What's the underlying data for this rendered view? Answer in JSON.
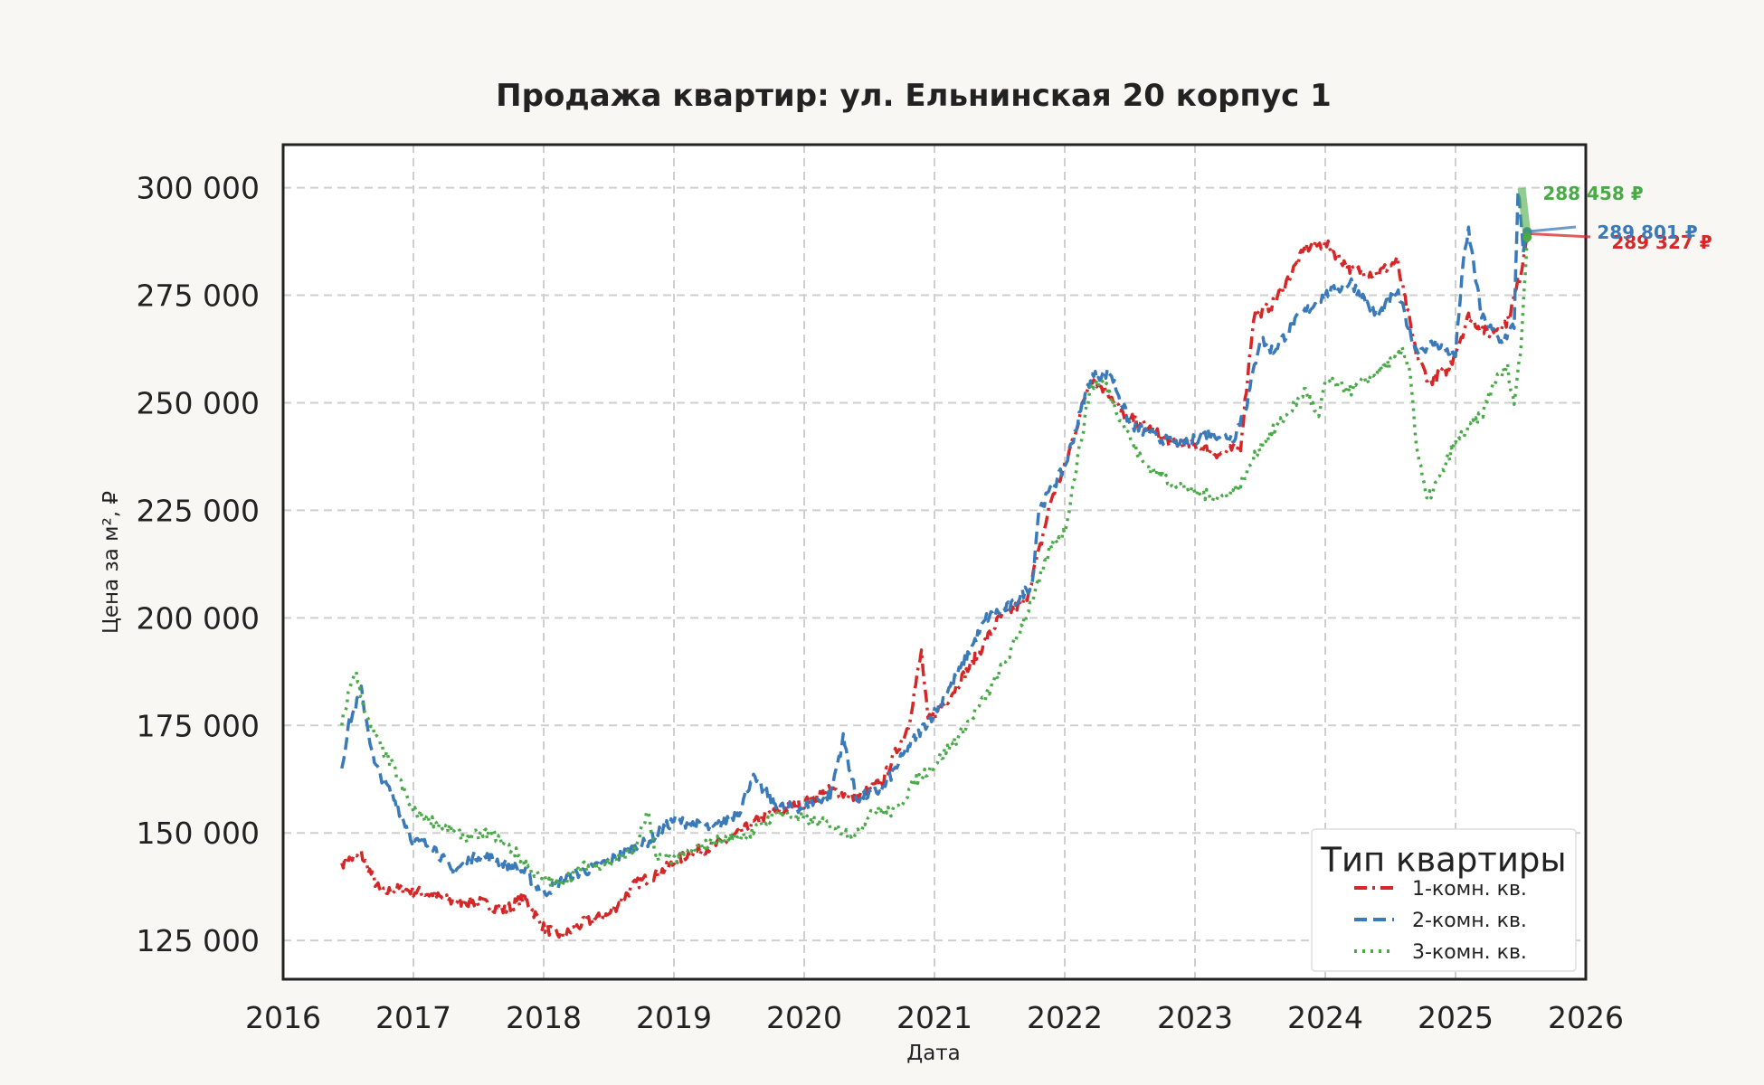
{
  "chart_data": {
    "type": "line",
    "title": "Продажа квартир: ул. Ельнинская 20 корпус 1",
    "xlabel": "Дата",
    "ylabel": "Цена за м², ₽",
    "xlim": [
      2016.0,
      2026.0
    ],
    "ylim": [
      116000,
      310000
    ],
    "x_ticks": [
      "2016",
      "2017",
      "2018",
      "2019",
      "2020",
      "2021",
      "2022",
      "2023",
      "2024",
      "2025",
      "2026"
    ],
    "y_ticks": [
      {
        "value": 125000,
        "label": "125 000"
      },
      {
        "value": 150000,
        "label": "150 000"
      },
      {
        "value": 175000,
        "label": "175 000"
      },
      {
        "value": 200000,
        "label": "200 000"
      },
      {
        "value": 225000,
        "label": "225 000"
      },
      {
        "value": 250000,
        "label": "250 000"
      },
      {
        "value": 275000,
        "label": "275 000"
      },
      {
        "value": 300000,
        "label": "300 000"
      }
    ],
    "grid": true,
    "legend": {
      "title": "Тип квартиры",
      "position": "lower-right"
    },
    "series": [
      {
        "name": "1-комн. кв.",
        "color": "#d62728",
        "dash": "dash-dot",
        "end_label": "289 327 ₽",
        "x": [
          2016.45,
          2016.6,
          2016.75,
          2016.9,
          2017.1,
          2017.3,
          2017.5,
          2017.7,
          2017.85,
          2018.0,
          2018.15,
          2018.3,
          2018.5,
          2018.7,
          2018.9,
          2019.1,
          2019.4,
          2019.7,
          2020.0,
          2020.2,
          2020.4,
          2020.6,
          2020.8,
          2020.9,
          2020.95,
          2021.1,
          2021.3,
          2021.5,
          2021.7,
          2021.8,
          2021.9,
          2022.0,
          2022.2,
          2022.35,
          2022.45,
          2022.6,
          2022.8,
          2023.0,
          2023.2,
          2023.35,
          2023.45,
          2023.6,
          2023.7,
          2023.85,
          2024.0,
          2024.2,
          2024.4,
          2024.55,
          2024.7,
          2024.8,
          2024.95,
          2025.0,
          2025.1,
          2025.25,
          2025.4,
          2025.5,
          2025.55
        ],
        "y": [
          143000,
          145000,
          136000,
          137000,
          136000,
          134000,
          134000,
          132000,
          135000,
          128000,
          126000,
          129000,
          131000,
          138000,
          141000,
          145000,
          148000,
          154000,
          157000,
          160000,
          158000,
          162000,
          175000,
          192000,
          176000,
          181000,
          190000,
          200000,
          204000,
          215000,
          228000,
          235000,
          256000,
          252000,
          247000,
          245000,
          241000,
          240000,
          238000,
          240000,
          270000,
          273000,
          278000,
          286000,
          287000,
          281000,
          280000,
          283000,
          261000,
          255000,
          258000,
          262000,
          270000,
          266000,
          269000,
          280000,
          289327
        ]
      },
      {
        "name": "2-комн. кв.",
        "color": "#3a7ab8",
        "dash": "dashed",
        "end_label": "289 801 ₽",
        "x": [
          2016.45,
          2016.5,
          2016.6,
          2016.7,
          2016.85,
          2017.0,
          2017.15,
          2017.3,
          2017.5,
          2017.7,
          2017.85,
          2018.0,
          2018.2,
          2018.4,
          2018.6,
          2018.8,
          2019.0,
          2019.3,
          2019.5,
          2019.6,
          2019.8,
          2020.0,
          2020.2,
          2020.3,
          2020.4,
          2020.6,
          2020.8,
          2021.0,
          2021.2,
          2021.4,
          2021.6,
          2021.75,
          2021.8,
          2021.9,
          2022.0,
          2022.2,
          2022.35,
          2022.5,
          2022.7,
          2022.9,
          2023.1,
          2023.3,
          2023.4,
          2023.5,
          2023.6,
          2023.8,
          2024.0,
          2024.2,
          2024.4,
          2024.55,
          2024.7,
          2024.85,
          2025.0,
          2025.05,
          2025.1,
          2025.2,
          2025.35,
          2025.45,
          2025.48,
          2025.52,
          2025.55
        ],
        "y": [
          165000,
          175000,
          183000,
          166000,
          158000,
          148000,
          147000,
          141000,
          145000,
          143000,
          141000,
          136000,
          140000,
          142000,
          145000,
          148000,
          153000,
          151000,
          155000,
          163000,
          156000,
          156000,
          159000,
          172000,
          158000,
          160000,
          170000,
          178000,
          188000,
          200000,
          203000,
          208000,
          225000,
          230000,
          235000,
          256000,
          257000,
          245000,
          242000,
          240000,
          243000,
          242000,
          250000,
          265000,
          262000,
          270000,
          275000,
          278000,
          270000,
          276000,
          262000,
          264000,
          261000,
          280000,
          290000,
          270000,
          264000,
          268000,
          300000,
          285000,
          289801
        ]
      },
      {
        "name": "3-комн. кв.",
        "color": "#4aaa48",
        "dash": "dotted",
        "end_label": "288 458 ₽",
        "x": [
          2016.45,
          2016.5,
          2016.55,
          2016.65,
          2016.75,
          2016.85,
          2017.0,
          2017.2,
          2017.4,
          2017.6,
          2017.8,
          2017.95,
          2018.1,
          2018.3,
          2018.5,
          2018.7,
          2018.8,
          2018.85,
          2019.0,
          2019.3,
          2019.6,
          2019.8,
          2020.0,
          2020.2,
          2020.4,
          2020.5,
          2020.7,
          2020.85,
          2021.0,
          2021.2,
          2021.4,
          2021.6,
          2021.8,
          2021.9,
          2022.0,
          2022.2,
          2022.3,
          2022.45,
          2022.6,
          2022.8,
          2023.0,
          2023.2,
          2023.35,
          2023.5,
          2023.7,
          2023.85,
          2023.95,
          2024.0,
          2024.2,
          2024.4,
          2024.6,
          2024.65,
          2024.7,
          2024.78,
          2024.9,
          2025.0,
          2025.2,
          2025.3,
          2025.4,
          2025.45,
          2025.5,
          2025.55
        ],
        "y": [
          175000,
          182000,
          188000,
          176000,
          170000,
          165000,
          155000,
          152000,
          149000,
          150000,
          145000,
          140000,
          138000,
          142000,
          143000,
          146000,
          155000,
          145000,
          144000,
          148000,
          150000,
          155000,
          153000,
          152000,
          149000,
          155000,
          155000,
          162000,
          166000,
          173000,
          182000,
          193000,
          208000,
          217000,
          220000,
          254000,
          255000,
          245000,
          236000,
          232000,
          229000,
          228000,
          231000,
          240000,
          247000,
          253000,
          246000,
          255000,
          253000,
          257000,
          262000,
          258000,
          240000,
          227000,
          234000,
          241000,
          247000,
          255000,
          258000,
          250000,
          262000,
          288458
        ]
      }
    ]
  }
}
